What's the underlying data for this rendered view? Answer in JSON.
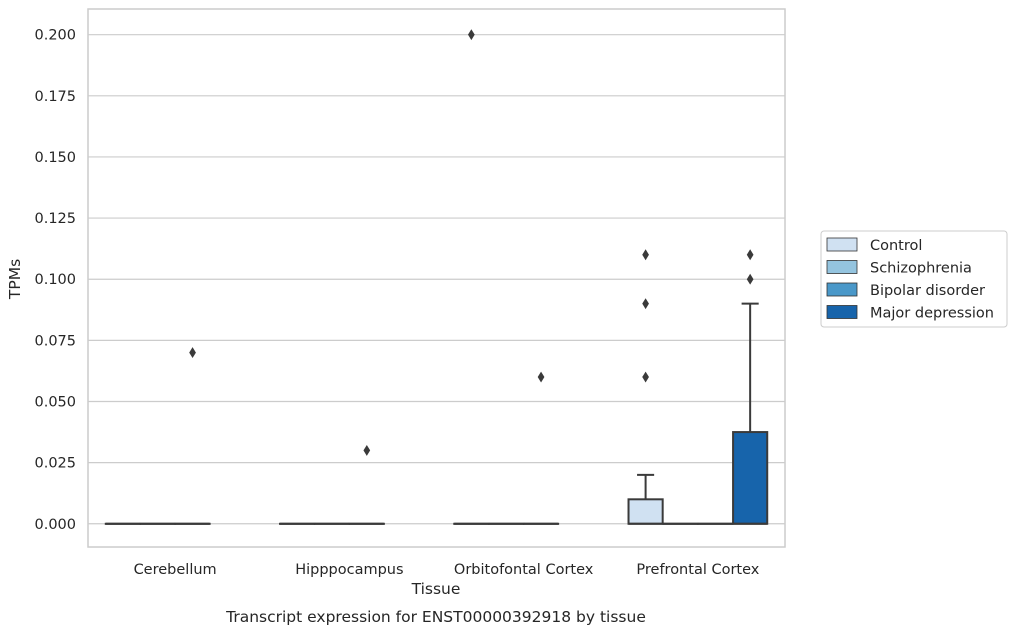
{
  "chart_data": {
    "type": "box",
    "title": "Transcript expression for ENST00000392918 by tissue",
    "xlabel": "Tissue",
    "ylabel": "TPMs",
    "ylim": [
      -0.0095,
      0.2105
    ],
    "yticks": [
      0.0,
      0.025,
      0.05,
      0.075,
      0.1,
      0.125,
      0.15,
      0.175,
      0.2
    ],
    "ytick_labels": [
      "0.000",
      "0.025",
      "0.050",
      "0.075",
      "0.100",
      "0.125",
      "0.150",
      "0.175",
      "0.200"
    ],
    "categories": [
      "Cerebellum",
      "Hipppocampus",
      "Orbitofontal Cortex",
      "Prefrontal Cortex"
    ],
    "grid": "horizontal",
    "legend_position": "right",
    "series": [
      {
        "name": "Control",
        "color": "#d0e1f2",
        "boxes": [
          {
            "q1": 0,
            "median": 0,
            "q3": 0,
            "whisker_low": 0,
            "whisker_high": 0,
            "outliers": []
          },
          {
            "q1": 0,
            "median": 0,
            "q3": 0,
            "whisker_low": 0,
            "whisker_high": 0,
            "outliers": []
          },
          {
            "q1": 0,
            "median": 0,
            "q3": 0,
            "whisker_low": 0,
            "whisker_high": 0,
            "outliers": [
              0.2
            ]
          },
          {
            "q1": 0,
            "median": 0,
            "q3": 0.01,
            "whisker_low": 0,
            "whisker_high": 0.02,
            "outliers": [
              0.06,
              0.09,
              0.11
            ]
          }
        ]
      },
      {
        "name": "Schizophrenia",
        "color": "#94c4df",
        "boxes": [
          {
            "q1": 0,
            "median": 0,
            "q3": 0,
            "whisker_low": 0,
            "whisker_high": 0,
            "outliers": []
          },
          {
            "q1": 0,
            "median": 0,
            "q3": 0,
            "whisker_low": 0,
            "whisker_high": 0,
            "outliers": []
          },
          {
            "q1": 0,
            "median": 0,
            "q3": 0,
            "whisker_low": 0,
            "whisker_high": 0,
            "outliers": []
          },
          {
            "q1": 0,
            "median": 0,
            "q3": 0,
            "whisker_low": 0,
            "whisker_high": 0,
            "outliers": []
          }
        ]
      },
      {
        "name": "Bipolar disorder",
        "color": "#4a98c9",
        "boxes": [
          {
            "q1": 0,
            "median": 0,
            "q3": 0,
            "whisker_low": 0,
            "whisker_high": 0,
            "outliers": [
              0.07
            ]
          },
          {
            "q1": 0,
            "median": 0,
            "q3": 0,
            "whisker_low": 0,
            "whisker_high": 0,
            "outliers": [
              0.03
            ]
          },
          {
            "q1": 0,
            "median": 0,
            "q3": 0,
            "whisker_low": 0,
            "whisker_high": 0,
            "outliers": [
              0.06
            ]
          },
          {
            "q1": 0,
            "median": 0,
            "q3": 0,
            "whisker_low": 0,
            "whisker_high": 0,
            "outliers": []
          }
        ]
      },
      {
        "name": "Major depression",
        "color": "#1764ab",
        "boxes": [
          null,
          null,
          null,
          {
            "q1": 0,
            "median": 0,
            "q3": 0.0375,
            "whisker_low": 0,
            "whisker_high": 0.09,
            "outliers": [
              0.1,
              0.11
            ]
          }
        ]
      }
    ]
  }
}
